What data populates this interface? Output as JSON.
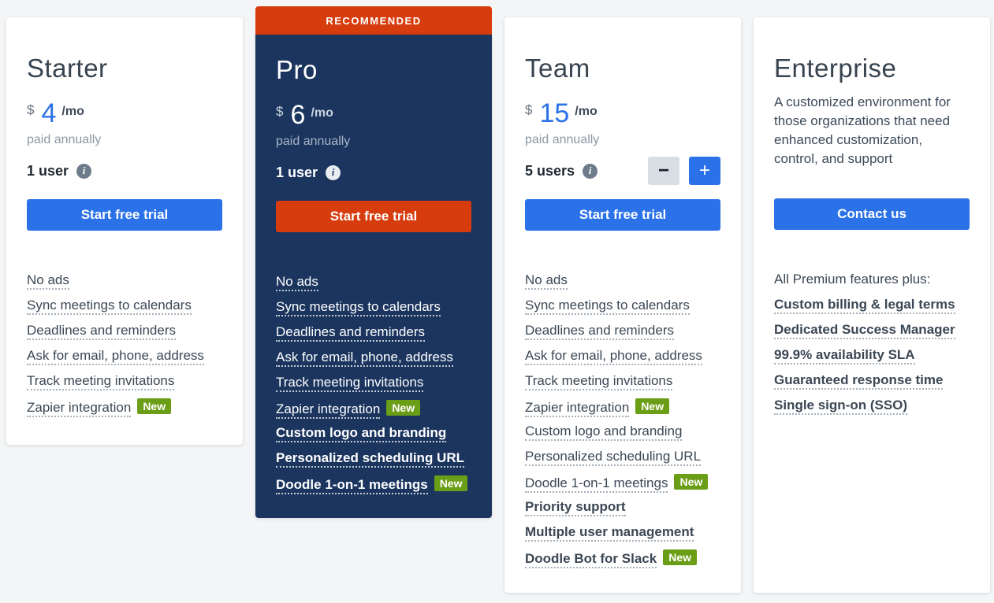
{
  "theme": {
    "page_bg": "#f4f5f6",
    "accent_blue": "#2b72e8",
    "accent_orange": "#d73c0e",
    "navy": "#1b355f",
    "badge_green": "#6b9e17"
  },
  "icons": {
    "info": "i",
    "minus": "−",
    "plus": "+"
  },
  "cards": [
    {
      "id": "starter",
      "title": "Starter",
      "price": {
        "currency": "$",
        "amount": "4",
        "period": "/mo",
        "note": "paid annually"
      },
      "users": {
        "label": "1 user"
      },
      "cta": {
        "label": "Start free trial"
      },
      "features": [
        {
          "label": "No ads"
        },
        {
          "label": "Sync meetings to calendars"
        },
        {
          "label": "Deadlines and reminders"
        },
        {
          "label": "Ask for email, phone, address"
        },
        {
          "label": "Track meeting invitations"
        },
        {
          "label": "Zapier integration",
          "badge": "New"
        }
      ]
    },
    {
      "id": "pro",
      "banner": "RECOMMENDED",
      "title": "Pro",
      "price": {
        "currency": "$",
        "amount": "6",
        "period": "/mo",
        "note": "paid annually"
      },
      "users": {
        "label": "1 user"
      },
      "cta": {
        "label": "Start free trial"
      },
      "features": [
        {
          "label": "No ads"
        },
        {
          "label": "Sync meetings to calendars"
        },
        {
          "label": "Deadlines and reminders"
        },
        {
          "label": "Ask for email, phone, address"
        },
        {
          "label": "Track meeting invitations"
        },
        {
          "label": "Zapier integration",
          "badge": "New"
        },
        {
          "label": "Custom logo and branding",
          "bold": true
        },
        {
          "label": "Personalized scheduling URL",
          "bold": true
        },
        {
          "label": "Doodle 1-on-1 meetings",
          "bold": true,
          "badge": "New"
        }
      ]
    },
    {
      "id": "team",
      "title": "Team",
      "price": {
        "currency": "$",
        "amount": "15",
        "period": "/mo",
        "note": "paid annually"
      },
      "users": {
        "label": "5 users"
      },
      "cta": {
        "label": "Start free trial"
      },
      "features": [
        {
          "label": "No ads"
        },
        {
          "label": "Sync meetings to calendars"
        },
        {
          "label": "Deadlines and reminders"
        },
        {
          "label": "Ask for email, phone, address"
        },
        {
          "label": "Track meeting invitations"
        },
        {
          "label": "Zapier integration",
          "badge": "New"
        },
        {
          "label": "Custom logo and branding"
        },
        {
          "label": "Personalized scheduling URL"
        },
        {
          "label": "Doodle 1-on-1 meetings",
          "badge": "New"
        },
        {
          "label": "Priority support",
          "bold": true
        },
        {
          "label": "Multiple user management",
          "bold": true
        },
        {
          "label": "Doodle Bot for Slack",
          "bold": true,
          "badge": "New"
        }
      ]
    },
    {
      "id": "enterprise",
      "title": "Enterprise",
      "description": "A customized environment for those organizations that need enhanced customization, control, and support",
      "cta": {
        "label": "Contact us"
      },
      "features_intro": "All Premium features plus:",
      "features": [
        {
          "label": "Custom billing & legal terms",
          "bold": true
        },
        {
          "label": "Dedicated Success Manager",
          "bold": true
        },
        {
          "label": "99.9% availability SLA",
          "bold": true
        },
        {
          "label": "Guaranteed response time",
          "bold": true
        },
        {
          "label": "Single sign-on (SSO)",
          "bold": true
        }
      ]
    }
  ]
}
